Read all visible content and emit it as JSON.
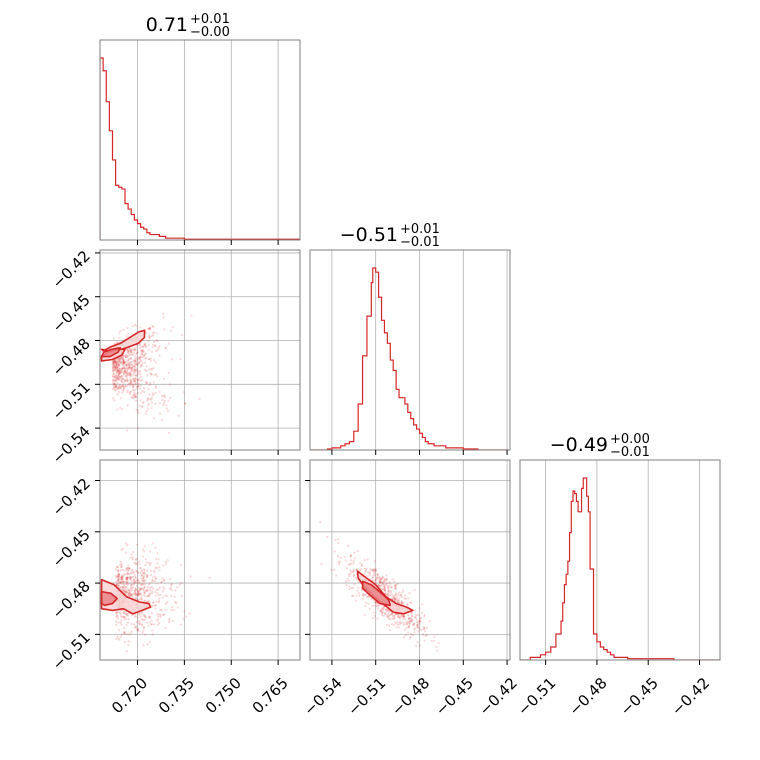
{
  "chart_data": {
    "type": "corner",
    "color": "#d62728",
    "fill_light": "#f9d3d4",
    "fill_dark": "#e98587",
    "grid": true,
    "titles": [
      {
        "base": "0.71",
        "sup": "+0.01",
        "sub": "−0.00"
      },
      {
        "base": "−0.51",
        "sup": "+0.01",
        "sub": "−0.01"
      },
      {
        "base": "−0.49",
        "sup": "+0.00",
        "sub": "−0.01"
      }
    ],
    "ranges": [
      [
        0.708,
        0.772
      ],
      [
        -0.555,
        -0.418
      ],
      [
        -0.525,
        -0.408
      ]
    ],
    "axis_ticks": [
      {
        "values": [
          0.72,
          0.735,
          0.75,
          0.765
        ],
        "labels": [
          "0.720",
          "0.735",
          "0.750",
          "0.765"
        ]
      },
      {
        "values": [
          -0.54,
          -0.51,
          -0.48,
          -0.45,
          -0.42
        ],
        "labels": [
          "−0.54",
          "−0.51",
          "−0.48",
          "−0.45",
          "−0.42"
        ]
      },
      {
        "values": [
          -0.51,
          -0.48,
          -0.45,
          -0.42
        ],
        "labels": [
          "−0.51",
          "−0.48",
          "−0.45",
          "−0.42"
        ]
      }
    ],
    "histograms": [
      {
        "edges": [
          0.708,
          0.709,
          0.71,
          0.711,
          0.712,
          0.713,
          0.714,
          0.715,
          0.716,
          0.717,
          0.718,
          0.719,
          0.72,
          0.721,
          0.722,
          0.723,
          0.724,
          0.725,
          0.727,
          0.729,
          0.731,
          0.733,
          0.735,
          0.772
        ],
        "counts": [
          100,
          93,
          76,
          60,
          44,
          30,
          29,
          28,
          20,
          17,
          14,
          11,
          9,
          7,
          6,
          4,
          3,
          3,
          2,
          1,
          1,
          1,
          0.4
        ]
      },
      {
        "edges": [
          -0.555,
          -0.543,
          -0.54,
          -0.537,
          -0.534,
          -0.531,
          -0.528,
          -0.525,
          -0.522,
          -0.519,
          -0.516,
          -0.513,
          -0.512,
          -0.51,
          -0.508,
          -0.506,
          -0.504,
          -0.502,
          -0.5,
          -0.498,
          -0.496,
          -0.494,
          -0.492,
          -0.49,
          -0.488,
          -0.486,
          -0.484,
          -0.482,
          -0.48,
          -0.478,
          -0.476,
          -0.474,
          -0.472,
          -0.47,
          -0.466,
          -0.462,
          -0.457,
          -0.45,
          -0.44,
          -0.418
        ],
        "counts": [
          0,
          0.5,
          1,
          1,
          2,
          3,
          4,
          9,
          22,
          45,
          64,
          80,
          87,
          85,
          73,
          62,
          56,
          51,
          43,
          38,
          29,
          25,
          25,
          22,
          18,
          15,
          12,
          10,
          8,
          6,
          4,
          3,
          3,
          2,
          2,
          1,
          1,
          0.5,
          0
        ]
      },
      {
        "edges": [
          -0.525,
          -0.519,
          -0.516,
          -0.513,
          -0.51,
          -0.507,
          -0.504,
          -0.501,
          -0.5,
          -0.499,
          -0.498,
          -0.497,
          -0.496,
          -0.495,
          -0.494,
          -0.493,
          -0.492,
          -0.491,
          -0.49,
          -0.489,
          -0.488,
          -0.487,
          -0.486,
          -0.485,
          -0.484,
          -0.482,
          -0.48,
          -0.478,
          -0.476,
          -0.474,
          -0.472,
          -0.47,
          -0.468,
          -0.465,
          -0.462,
          -0.458,
          -0.452,
          -0.445,
          -0.435,
          -0.42,
          -0.408
        ],
        "counts": [
          0,
          1,
          1,
          2,
          3,
          5,
          10,
          15,
          22,
          29,
          33,
          38,
          49,
          61,
          65,
          64,
          61,
          57,
          57,
          66,
          70,
          70,
          63,
          57,
          35,
          10,
          7,
          5,
          4,
          3,
          2,
          1,
          1,
          1,
          0.5,
          0.5,
          0.5,
          0.5,
          0,
          0
        ]
      }
    ],
    "pairs": [
      {
        "x": 0,
        "y": 1,
        "center": [
          0.712,
          -0.499
        ],
        "scatter_spread": [
          0.008,
          0.013
        ],
        "contours": [
          {
            "level": "outer",
            "points": [
              [
                0.7085,
                -0.486
              ],
              [
                0.712,
                -0.488
              ],
              [
                0.7165,
                -0.485
              ],
              [
                0.7202,
                -0.482
              ],
              [
                0.7222,
                -0.478
              ],
              [
                0.7223,
                -0.473
              ],
              [
                0.7205,
                -0.474
              ],
              [
                0.7175,
                -0.478
              ],
              [
                0.7145,
                -0.482
              ],
              [
                0.7118,
                -0.484
              ],
              [
                0.709,
                -0.487
              ]
            ]
          },
          {
            "level": "outer2",
            "points": [
              [
                0.7085,
                -0.494
              ],
              [
                0.712,
                -0.493
              ],
              [
                0.715,
                -0.49
              ],
              [
                0.716,
                -0.486
              ],
              [
                0.7135,
                -0.486
              ],
              [
                0.7108,
                -0.488
              ],
              [
                0.7085,
                -0.491
              ]
            ]
          },
          {
            "level": "inner",
            "points": [
              [
                0.7085,
                -0.491
              ],
              [
                0.7112,
                -0.491
              ],
              [
                0.7138,
                -0.488
              ],
              [
                0.7145,
                -0.485
              ],
              [
                0.7118,
                -0.486
              ],
              [
                0.7092,
                -0.488
              ]
            ]
          }
        ]
      },
      {
        "x": 0,
        "y": 2,
        "center": [
          0.713,
          -0.487
        ],
        "scatter_spread": [
          0.008,
          0.011
        ],
        "contours": [
          {
            "level": "outer",
            "points": [
              [
                0.7085,
                -0.478
              ],
              [
                0.7125,
                -0.481
              ],
              [
                0.7165,
                -0.488
              ],
              [
                0.7205,
                -0.491
              ],
              [
                0.7236,
                -0.492
              ],
              [
                0.7242,
                -0.494
              ],
              [
                0.7215,
                -0.496
              ],
              [
                0.7185,
                -0.498
              ],
              [
                0.7155,
                -0.495
              ],
              [
                0.712,
                -0.496
              ],
              [
                0.7085,
                -0.495
              ]
            ]
          },
          {
            "level": "inner",
            "points": [
              [
                0.7085,
                -0.485
              ],
              [
                0.7115,
                -0.486
              ],
              [
                0.7135,
                -0.489
              ],
              [
                0.712,
                -0.492
              ],
              [
                0.7095,
                -0.493
              ],
              [
                0.7085,
                -0.492
              ]
            ]
          }
        ]
      },
      {
        "x": 1,
        "y": 2,
        "center": [
          -0.504,
          -0.488
        ],
        "scatter_spread": [
          0.013,
          0.011
        ],
        "contours": [
          {
            "level": "outer",
            "points": [
              [
                -0.5225,
                -0.473
              ],
              [
                -0.518,
                -0.476
              ],
              [
                -0.51,
                -0.481
              ],
              [
                -0.503,
                -0.488
              ],
              [
                -0.496,
                -0.492
              ],
              [
                -0.489,
                -0.494
              ],
              [
                -0.4845,
                -0.496
              ],
              [
                -0.491,
                -0.498
              ],
              [
                -0.498,
                -0.497
              ],
              [
                -0.505,
                -0.492
              ],
              [
                -0.512,
                -0.487
              ],
              [
                -0.518,
                -0.482
              ],
              [
                -0.522,
                -0.477
              ]
            ]
          },
          {
            "level": "inner",
            "points": [
              [
                -0.519,
                -0.479
              ],
              [
                -0.513,
                -0.481
              ],
              [
                -0.506,
                -0.486
              ],
              [
                -0.501,
                -0.49
              ],
              [
                -0.5,
                -0.493
              ],
              [
                -0.507,
                -0.492
              ],
              [
                -0.514,
                -0.487
              ],
              [
                -0.519,
                -0.483
              ]
            ]
          }
        ]
      }
    ]
  }
}
